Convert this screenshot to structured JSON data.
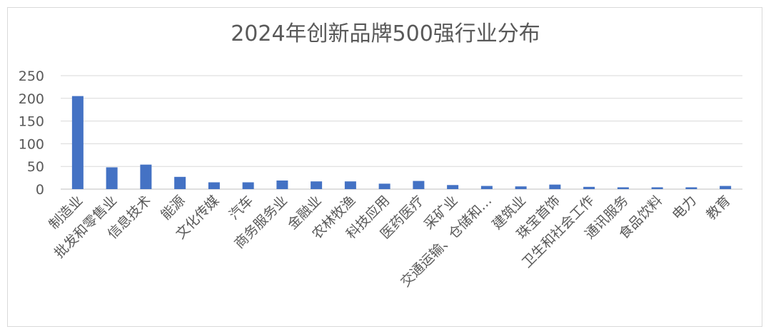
{
  "chart_data": {
    "type": "bar",
    "title": "2024年创新品牌500强行业分布",
    "xlabel": "",
    "ylabel": "",
    "ylim": [
      0,
      250
    ],
    "yticks": [
      0,
      50,
      100,
      150,
      200,
      250
    ],
    "grid": true,
    "legend": "none",
    "bar_color": "#4472c4",
    "categories": [
      "制造业",
      "批发和零售业",
      "信息技术",
      "能源",
      "文化传媒",
      "汽车",
      "商务服务业",
      "金融业",
      "农林牧渔",
      "科技应用",
      "医药医疗",
      "采矿业",
      "交通运输、仓储和…",
      "建筑业",
      "珠宝首饰",
      "卫生和社会工作",
      "通讯服务",
      "食品饮料",
      "电力",
      "教育"
    ],
    "values": [
      205,
      48,
      54,
      27,
      15,
      15,
      19,
      17,
      17,
      12,
      18,
      9,
      7,
      6,
      10,
      5,
      4,
      4,
      4,
      7
    ]
  }
}
